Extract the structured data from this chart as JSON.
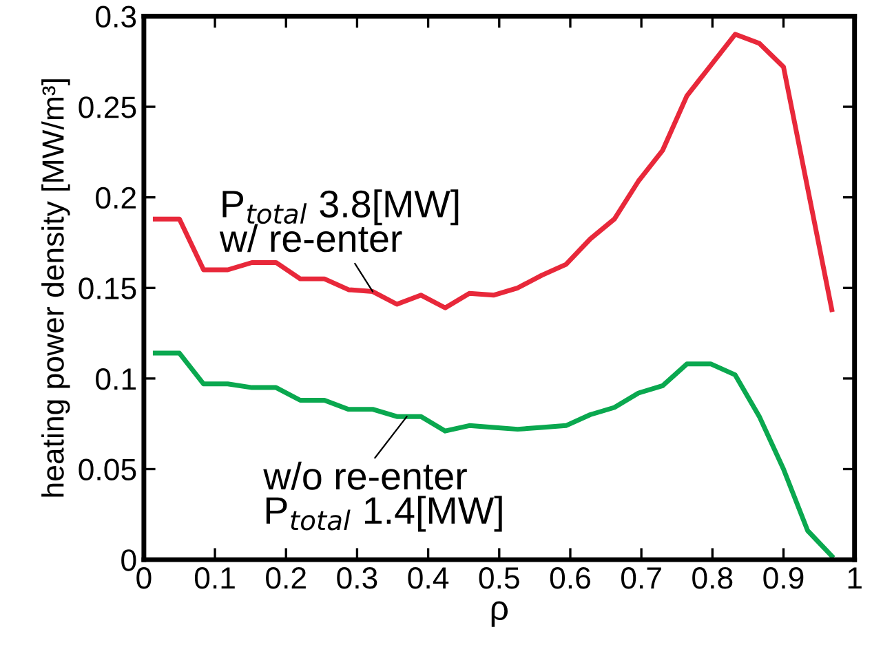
{
  "chart_data": {
    "type": "line",
    "xlabel": "ρ",
    "ylabel": "heating power density [MW/m³]",
    "x": [
      0.016,
      0.05,
      0.084,
      0.118,
      0.152,
      0.186,
      0.22,
      0.254,
      0.288,
      0.322,
      0.356,
      0.39,
      0.424,
      0.458,
      0.492,
      0.526,
      0.56,
      0.594,
      0.628,
      0.662,
      0.696,
      0.73,
      0.764,
      0.798,
      0.832,
      0.866,
      0.9,
      0.934,
      0.968
    ],
    "series": [
      {
        "color": "#e8283a",
        "values": [
          0.188,
          0.188,
          0.16,
          0.16,
          0.164,
          0.164,
          0.155,
          0.155,
          0.149,
          0.148,
          0.141,
          0.146,
          0.139,
          0.147,
          0.146,
          0.15,
          0.157,
          0.163,
          0.177,
          0.188,
          0.209,
          0.226,
          0.256,
          0.273,
          0.29,
          0.285,
          0.272,
          0.205,
          0.138
        ]
      },
      {
        "color": "#0aa84f",
        "values": [
          0.114,
          0.114,
          0.097,
          0.097,
          0.095,
          0.095,
          0.088,
          0.088,
          0.083,
          0.083,
          0.079,
          0.079,
          0.071,
          0.074,
          0.073,
          0.072,
          0.073,
          0.074,
          0.08,
          0.084,
          0.092,
          0.096,
          0.108,
          0.108,
          0.102,
          0.079,
          0.05,
          0.016,
          0.002
        ]
      }
    ],
    "annotations": [
      {
        "text": "P$_{total}$ 3.8[MW]\nw/ re-enter",
        "x": 0.322,
        "y": 0.148
      },
      {
        "text": "w/o re-enter\nP$_{total}$ 1.4[MW]",
        "x": 0.37,
        "y": 0.079
      }
    ],
    "xlim": [
      0,
      1
    ],
    "ylim": [
      0,
      0.3
    ],
    "xticks": [
      0,
      0.1,
      0.2,
      0.3,
      0.4,
      0.5,
      0.6,
      0.7,
      0.8,
      0.9,
      1
    ],
    "yticks": [
      0,
      0.05,
      0.1,
      0.15,
      0.2,
      0.25,
      0.3
    ],
    "grid": false,
    "marker": "none",
    "line_style": "solid"
  }
}
